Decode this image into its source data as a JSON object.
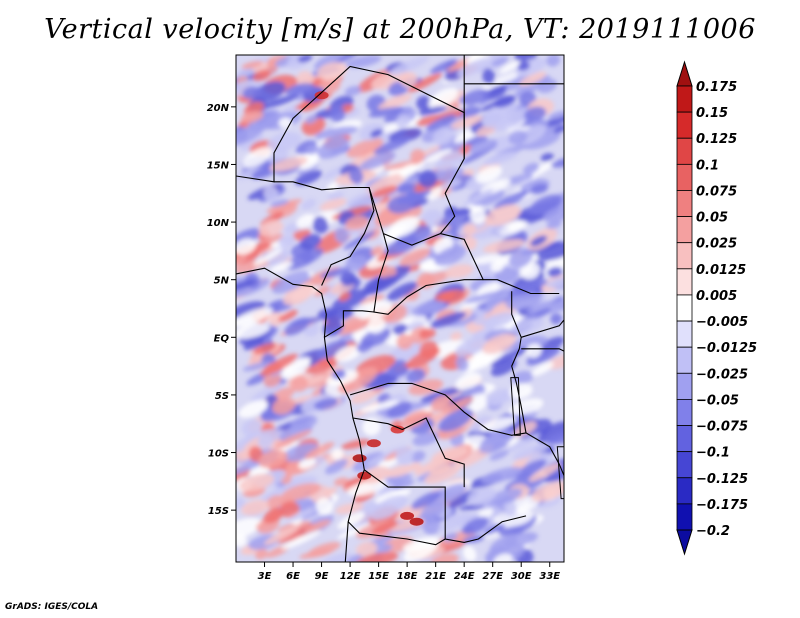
{
  "chart_data": {
    "type": "heatmap",
    "title": "Vertical velocity [m/s] at 200hPa, VT: 2019111006",
    "variable": "Vertical velocity",
    "units": "m/s",
    "level": "200hPa",
    "valid_time": "2019111006",
    "x_ticks": [
      "3E",
      "6E",
      "9E",
      "12E",
      "15E",
      "18E",
      "21E",
      "24E",
      "27E",
      "30E",
      "33E"
    ],
    "x_tick_values": [
      3,
      6,
      9,
      12,
      15,
      18,
      21,
      24,
      27,
      30,
      33
    ],
    "y_ticks": [
      "20N",
      "15N",
      "10N",
      "5N",
      "EQ",
      "5S",
      "10S",
      "15S"
    ],
    "y_tick_values": [
      20,
      15,
      10,
      5,
      0,
      -5,
      -10,
      -15
    ],
    "xlim": [
      0,
      34.5
    ],
    "ylim": [
      -19.5,
      24.5
    ],
    "colorbar": {
      "levels": [
        "0.175",
        "0.15",
        "0.125",
        "0.1",
        "0.075",
        "0.05",
        "0.025",
        "0.0125",
        "0.005",
        "−0.005",
        "−0.0125",
        "−0.025",
        "−0.05",
        "−0.075",
        "−0.1",
        "−0.125",
        "−0.175",
        "−0.2"
      ],
      "colors": [
        "#a01010",
        "#c01818",
        "#d62a2a",
        "#e04646",
        "#e86262",
        "#ef8080",
        "#f4a0a0",
        "#f8c0c0",
        "#fce0e0",
        "#ffffff",
        "#e0e0fc",
        "#c0c0f6",
        "#a0a0f0",
        "#8080ea",
        "#6262e0",
        "#4646d4",
        "#2a2ac4",
        "#1010b0",
        "#0c0ca0"
      ]
    }
  },
  "footer": "GrADS: IGES/COLA"
}
